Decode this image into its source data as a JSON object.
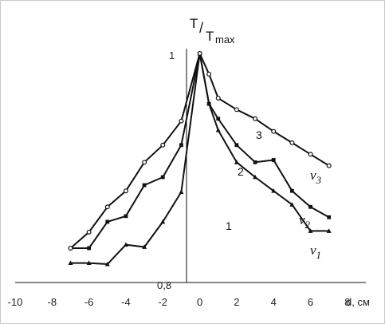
{
  "chart_data": {
    "type": "line",
    "xlim": [
      -10,
      9
    ],
    "ylim": [
      0.8,
      1
    ],
    "xticks": [
      "-10",
      "-8",
      "-6",
      "-4",
      "-2",
      "0",
      "2",
      "4",
      "6",
      "8"
    ],
    "xlabel": "d, см",
    "ylabel_main": "T",
    "ylabel_sub": "T",
    "ylabel_sub_index": "max",
    "y_top_label": "1",
    "y_bottom_label": "0,8",
    "grid": false,
    "series": [
      {
        "name": "v1",
        "name_letter": "v",
        "name_index": "1",
        "number_label": "1",
        "color": "#111111",
        "marker": "triangle",
        "x": [
          -7,
          -6,
          -5,
          -4,
          -3,
          -2,
          -1,
          0,
          0.5,
          1,
          2,
          3,
          4,
          5,
          6,
          7
        ],
        "y": [
          0.817,
          0.817,
          0.816,
          0.833,
          0.831,
          0.853,
          0.879,
          1,
          0.956,
          0.933,
          0.905,
          0.892,
          0.88,
          0.868,
          0.845,
          0.845
        ]
      },
      {
        "name": "v2",
        "name_letter": "v",
        "name_index": "2",
        "number_label": "2",
        "color": "#111111",
        "marker": "square",
        "x": [
          -7,
          -6,
          -5,
          -4,
          -3,
          -2,
          -1,
          0,
          0.5,
          1,
          2,
          3,
          4,
          5,
          6,
          7
        ],
        "y": [
          0.83,
          0.83,
          0.853,
          0.858,
          0.885,
          0.892,
          0.92,
          1,
          0.956,
          0.943,
          0.92,
          0.905,
          0.907,
          0.88,
          0.866,
          0.857
        ]
      },
      {
        "name": "v3",
        "name_letter": "v",
        "name_index": "3",
        "number_label": "3",
        "color": "#111111",
        "marker": "circle",
        "x": [
          -7,
          -6,
          -5,
          -4,
          -3,
          -2,
          -1,
          0,
          0.5,
          1,
          2,
          3,
          4,
          5,
          6,
          7
        ],
        "y": [
          0.83,
          0.844,
          0.866,
          0.88,
          0.905,
          0.92,
          0.941,
          1,
          0.982,
          0.961,
          0.951,
          0.943,
          0.932,
          0.922,
          0.912,
          0.902
        ]
      }
    ]
  }
}
